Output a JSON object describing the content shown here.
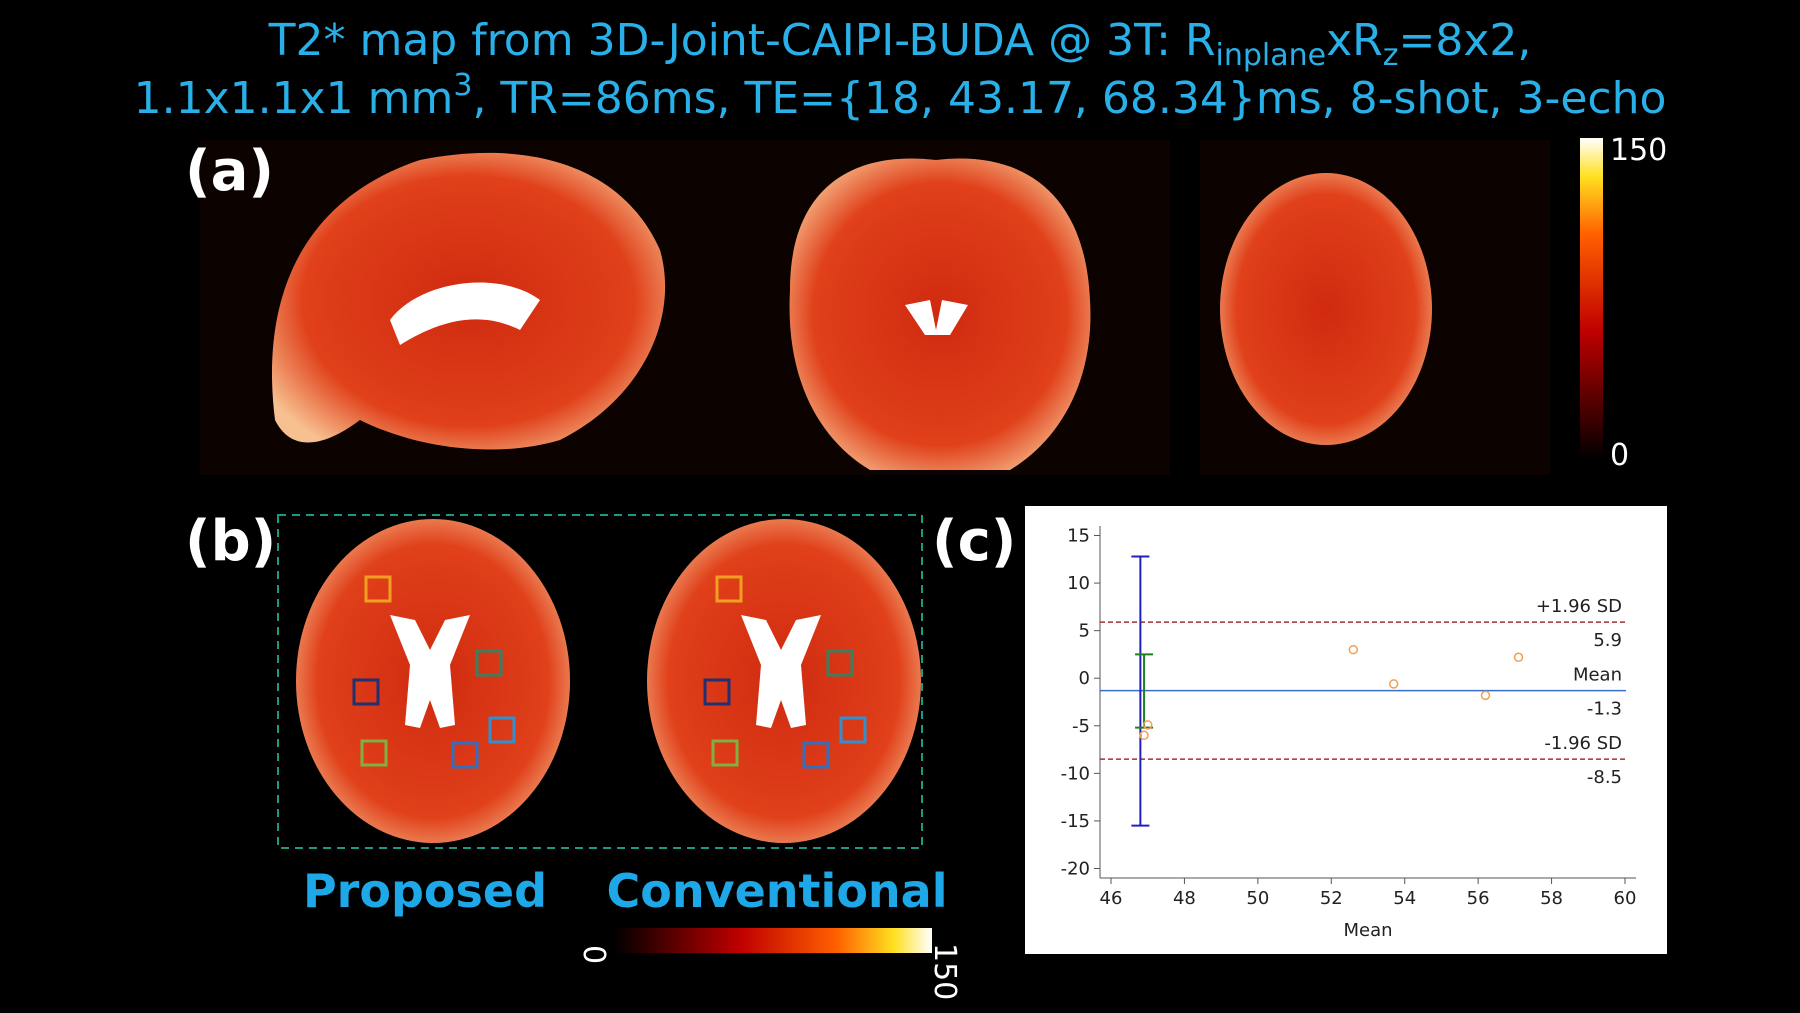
{
  "title": {
    "line1": [
      "T2* map from 3D-Joint-CAIPI-BUDA @ 3T: R",
      "inplane",
      "xR",
      "z",
      "=8x2,"
    ],
    "line2": [
      "1.1x1.1x1 mm",
      "3",
      ", TR=86ms, TE={18, 43.17, 68.34}ms, 8-shot, 3-echo"
    ]
  },
  "panels": {
    "a": "(a)",
    "b": "(b)",
    "c": "(c)"
  },
  "colorbar_a": {
    "max": "150",
    "min": "0"
  },
  "colorbar_b": {
    "min": "0",
    "max": "150"
  },
  "methods": [
    "Proposed",
    "Conventional"
  ],
  "chart_data": {
    "type": "scatter",
    "xlabel": "Mean",
    "x": [
      47.0,
      46.9,
      52.6,
      53.7,
      56.2,
      57.1
    ],
    "values": [
      -4.9,
      -6.0,
      3.0,
      -0.6,
      -1.8,
      2.2
    ],
    "color": "#f0a050",
    "xlim": [
      45.7,
      60.3
    ],
    "ylim": [
      -21,
      16
    ],
    "xticks": [
      46,
      48,
      50,
      52,
      54,
      56,
      58,
      60
    ],
    "yticks": [
      -20,
      -15,
      -10,
      -5,
      0,
      5,
      10,
      15
    ],
    "reference_lines": [
      {
        "name": "+1.96 SD",
        "value": 5.9,
        "color": "#a03030",
        "dashed": true
      },
      {
        "name": "Mean",
        "value": -1.3,
        "color": "#3a6fc9",
        "dashed": false
      },
      {
        "name": "-1.96 SD",
        "value": -8.5,
        "color": "#a03030",
        "dashed": true
      }
    ],
    "error_bars": [
      {
        "x": 46.8,
        "low": -15.5,
        "high": 12.8,
        "color": "#2020c0"
      },
      {
        "x": 46.9,
        "low": -5.2,
        "high": 2.5,
        "color": "#208020"
      }
    ]
  }
}
